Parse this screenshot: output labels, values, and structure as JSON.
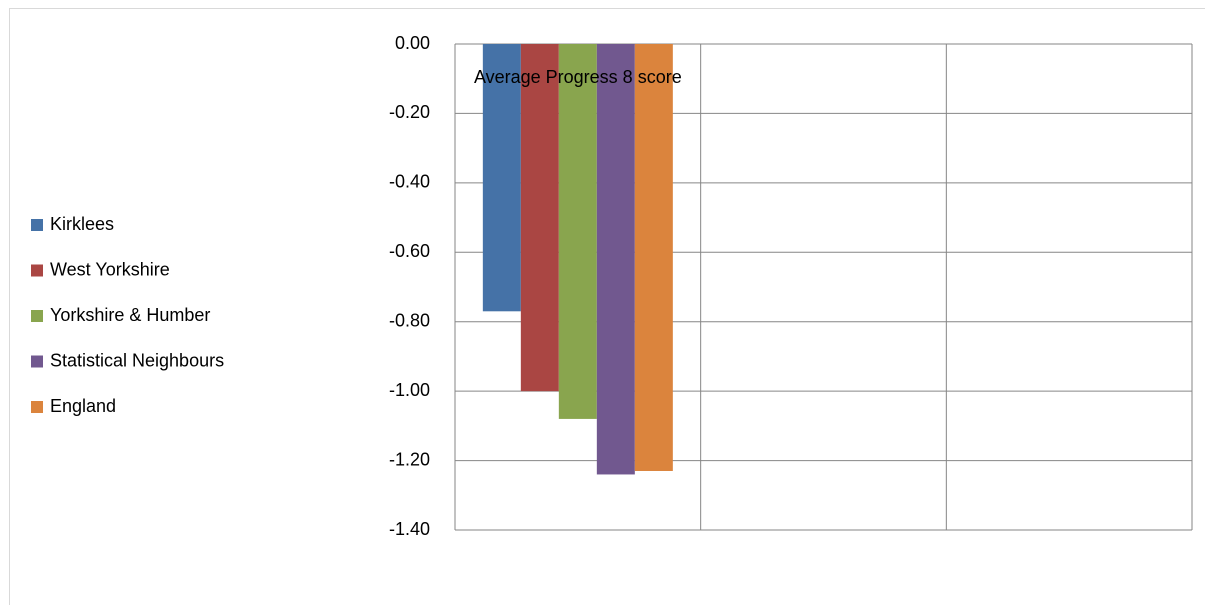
{
  "chart_data": {
    "type": "bar",
    "categories": [
      "Average Progress 8 score",
      null,
      null
    ],
    "series": [
      {
        "name": "Kirklees",
        "color": "#4572a7",
        "values": [
          -0.77,
          null,
          null
        ]
      },
      {
        "name": "West Yorkshire",
        "color": "#aa4643",
        "values": [
          -1.0,
          null,
          null
        ]
      },
      {
        "name": "Yorkshire & Humber",
        "color": "#89a54e",
        "values": [
          -1.08,
          null,
          null
        ]
      },
      {
        "name": "Statistical Neighbours",
        "color": "#71588f",
        "values": [
          -1.24,
          null,
          null
        ]
      },
      {
        "name": "England",
        "color": "#db843d",
        "values": [
          -1.23,
          null,
          null
        ]
      }
    ],
    "ylim": [
      -1.4,
      0
    ],
    "yticks": [
      {
        "value": 0,
        "label": "0.00"
      },
      {
        "value": -0.2,
        "label": "-0.20"
      },
      {
        "value": -0.4,
        "label": "-0.40"
      },
      {
        "value": -0.6,
        "label": "-0.60"
      },
      {
        "value": -0.8,
        "label": "-0.80"
      },
      {
        "value": -1.0,
        "label": "-1.00"
      },
      {
        "value": -1.2,
        "label": "-1.20"
      },
      {
        "value": -1.4,
        "label": "-1.40"
      }
    ],
    "grid": true,
    "legend": "left"
  }
}
